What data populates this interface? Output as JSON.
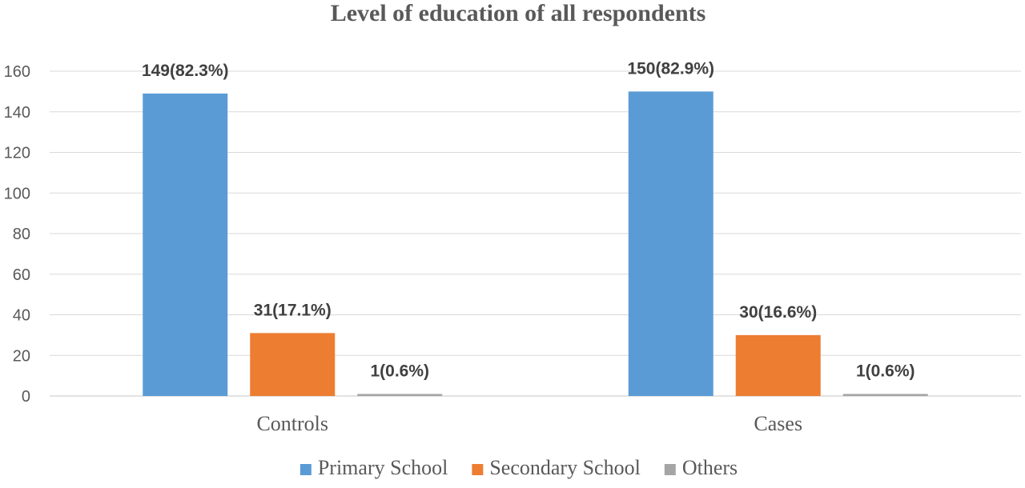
{
  "chart_data": {
    "type": "bar",
    "title": "Level of education of all respondents",
    "categories": [
      "Controls",
      "Cases"
    ],
    "series": [
      {
        "name": "Primary School",
        "color": "#5b9bd5",
        "values": [
          149,
          150
        ],
        "labels": [
          "149(82.3%)",
          "150(82.9%)"
        ]
      },
      {
        "name": "Secondary School",
        "color": "#ed7d31",
        "values": [
          31,
          30
        ],
        "labels": [
          "31(17.1%)",
          "30(16.6%)"
        ]
      },
      {
        "name": "Others",
        "color": "#a5a5a5",
        "values": [
          1,
          1
        ],
        "labels": [
          "1(0.6%)",
          "1(0.6%)"
        ]
      }
    ],
    "ylim": [
      0,
      160
    ],
    "yticks": [
      0,
      20,
      40,
      60,
      80,
      100,
      120,
      140,
      160
    ],
    "grid": true,
    "legend": "bottom"
  }
}
